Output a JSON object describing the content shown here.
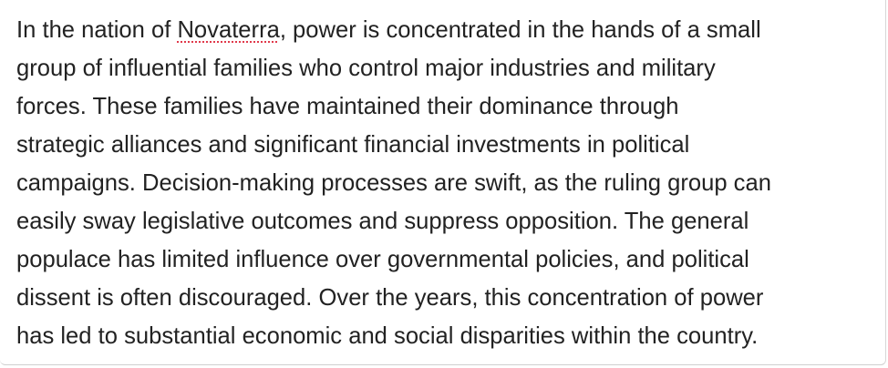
{
  "editor": {
    "lines": [
      {
        "before": "In the nation of ",
        "flagged": "Novaterra",
        "after": ", power is concentrated in the hands of a small"
      },
      {
        "text": "group of influential families who control major industries and military"
      },
      {
        "text": "forces. These families have maintained their dominance through"
      },
      {
        "text": "strategic alliances and significant financial investments in political"
      },
      {
        "text": "campaigns. Decision-making processes are swift, as the ruling group can"
      },
      {
        "text": "easily sway legislative outcomes and suppress opposition. The general"
      },
      {
        "text": "populace has limited influence over governmental policies, and political"
      },
      {
        "text": "dissent is often discouraged. Over the years, this concentration of power"
      },
      {
        "text": "has led to substantial economic and social disparities within the country."
      }
    ],
    "spellcheck_color": "#e0394b"
  }
}
